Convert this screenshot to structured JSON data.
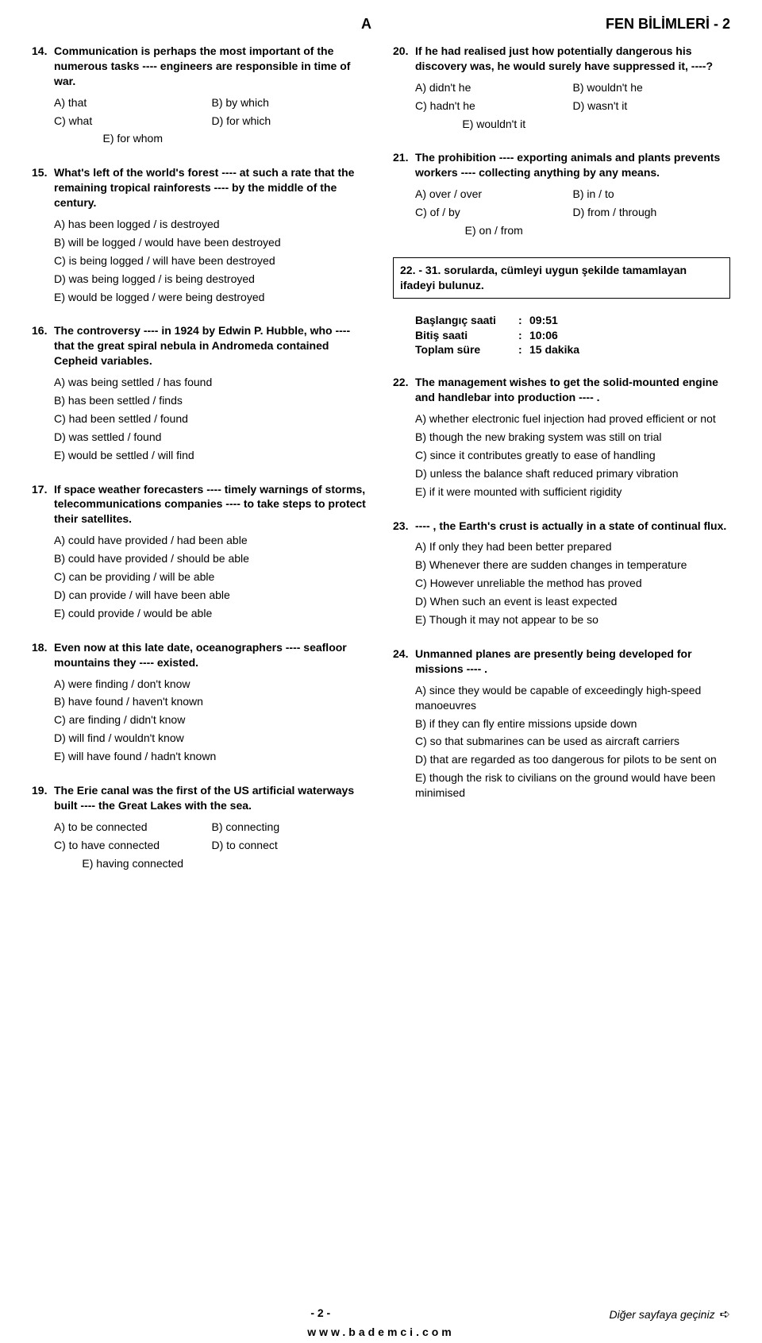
{
  "header": {
    "booklet": "A",
    "title": "FEN BİLİMLERİ - 2"
  },
  "left": [
    {
      "n": "14.",
      "stem": "Communication is perhaps the most important of the numerous tasks ---- engineers are responsible in time of war.",
      "layout": "2col",
      "opts": [
        "A) that",
        "B) by which",
        "C) what",
        "D) for which",
        "E) for whom"
      ]
    },
    {
      "n": "15.",
      "stem": "What's left of the world's forest ---- at such a rate that the remaining tropical rainforests ---- by the middle of the century.",
      "layout": "1col",
      "opts": [
        "A) has been logged / is destroyed",
        "B) will be logged / would have been destroyed",
        "C) is being logged / will have been destroyed",
        "D) was being logged / is being destroyed",
        "E) would be logged / were being destroyed"
      ]
    },
    {
      "n": "16.",
      "stem": "The controversy ---- in 1924 by Edwin P. Hubble, who ---- that the great spiral nebula in Andromeda contained Cepheid variables.",
      "layout": "1col",
      "opts": [
        "A) was being settled / has found",
        "B) has been settled / finds",
        "C) had been settled / found",
        "D) was settled / found",
        "E) would be settled / will find"
      ]
    },
    {
      "n": "17.",
      "stem": "If space weather forecasters ---- timely warnings of storms, telecommunications companies ---- to take steps to protect their satellites.",
      "layout": "1col",
      "opts": [
        "A) could have provided / had been able",
        "B) could have provided / should be able",
        "C) can be providing / will be able",
        "D) can provide / will have been able",
        "E) could provide / would be able"
      ]
    },
    {
      "n": "18.",
      "stem": "Even now at this late date, oceanographers ---- seafloor mountains they ---- existed.",
      "layout": "1col",
      "opts": [
        "A) were finding / don't know",
        "B) have found / haven't known",
        "C) are finding / didn't know",
        "D) will find / wouldn't know",
        "E) will have found / hadn't known"
      ]
    },
    {
      "n": "19.",
      "stem": "The Erie canal was the first of the US artificial waterways built ---- the Great Lakes with the sea.",
      "layout": "2col",
      "opts": [
        "A) to be connected",
        "B) connecting",
        "C) to have connected",
        "D) to connect",
        "E) having connected"
      ]
    }
  ],
  "rightTop": [
    {
      "n": "20.",
      "stem": "If he had realised just how potentially dangerous his discovery was, he would surely have suppressed it, ----?",
      "layout": "2col",
      "opts": [
        "A) didn't he",
        "B) wouldn't he",
        "C) hadn't he",
        "D) wasn't it",
        "E) wouldn't it"
      ]
    },
    {
      "n": "21.",
      "stem": "The prohibition ---- exporting animals and plants prevents workers ---- collecting anything by any means.",
      "layout": "2col",
      "opts": [
        "A) over / over",
        "B) in / to",
        "C) of / by",
        "D) from / through",
        "E) on / from"
      ]
    }
  ],
  "instruction": "22. - 31. sorularda, cümleyi uygun şekilde tamamlayan ifadeyi bulunuz.",
  "meta": {
    "start_k": "Başlangıç saati",
    "start_v": "09:51",
    "end_k": "Bitiş saati",
    "end_v": "10:06",
    "dur_k": "Toplam süre",
    "dur_v": "15 dakika"
  },
  "rightBottom": [
    {
      "n": "22.",
      "stem": "The management wishes to get the solid-mounted engine and handlebar into production ---- .",
      "layout": "1col",
      "opts": [
        "A) whether electronic fuel injection had proved efficient or not",
        "B) though the new braking system was still on trial",
        "C) since it contributes greatly to ease of handling",
        "D) unless the balance shaft reduced primary vibration",
        "E) if it were mounted with sufficient rigidity"
      ]
    },
    {
      "n": "23.",
      "stem": "---- , the Earth's crust is actually in a state of continual flux.",
      "layout": "1col",
      "opts": [
        "A) If only they had been better prepared",
        "B) Whenever there are sudden changes in temperature",
        "C) However unreliable the method has proved",
        "D) When such an event is least expected",
        "E) Though it may not appear to be so"
      ]
    },
    {
      "n": "24.",
      "stem": "Unmanned planes are presently being developed for missions ---- .",
      "layout": "1col",
      "opts": [
        "A) since they would be capable of exceedingly high-speed manoeuvres",
        "B) if they can fly entire missions upside down",
        "C) so that submarines can be used as aircraft carriers",
        "D) that are regarded as too dangerous for pilots to be sent on",
        "E) though the risk to civilians on the ground would have been minimised"
      ]
    }
  ],
  "footer": {
    "page": "- 2 -",
    "next": "Diğer sayfaya geçiniz",
    "site": "www.bademci.com"
  }
}
